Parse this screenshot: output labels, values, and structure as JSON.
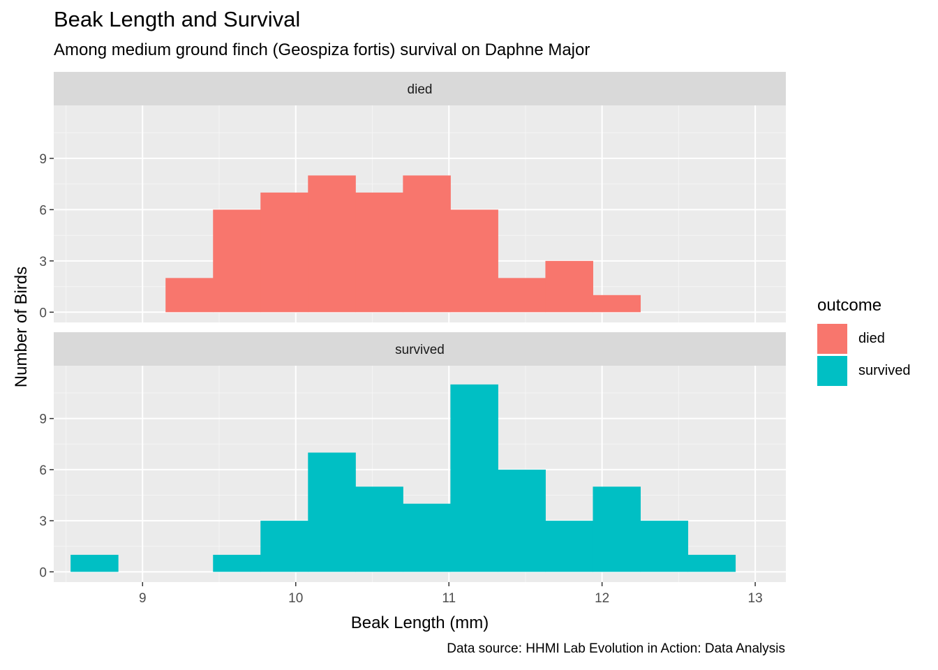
{
  "chart_data": {
    "type": "histogram",
    "title": "Beak Length and Survival",
    "subtitle": "Among medium ground finch (Geospiza fortis) survival on Daphne Major",
    "caption": "Data source: HHMI Lab Evolution in Action: Data Analysis",
    "xlabel": "Beak Length (mm)",
    "ylabel": "Number of Birds",
    "xlim": [
      8.42,
      13.2
    ],
    "ylim": [
      -0.6,
      12.1
    ],
    "x_ticks": [
      9,
      10,
      11,
      12,
      13
    ],
    "y_ticks": [
      0,
      3,
      6,
      9
    ],
    "bin_width": 0.31,
    "legend": {
      "title": "outcome",
      "position": "right",
      "items": [
        {
          "label": "died",
          "color": "#F8766D"
        },
        {
          "label": "survived",
          "color": "#00BFC4"
        }
      ]
    },
    "facets": [
      {
        "label": "died",
        "color": "#F8766D",
        "bins": [
          {
            "x_start": 9.15,
            "x_end": 9.46,
            "count": 2
          },
          {
            "x_start": 9.46,
            "x_end": 9.77,
            "count": 6
          },
          {
            "x_start": 9.77,
            "x_end": 10.08,
            "count": 7
          },
          {
            "x_start": 10.08,
            "x_end": 10.39,
            "count": 8
          },
          {
            "x_start": 10.39,
            "x_end": 10.7,
            "count": 7
          },
          {
            "x_start": 10.7,
            "x_end": 11.01,
            "count": 8
          },
          {
            "x_start": 11.01,
            "x_end": 11.32,
            "count": 6
          },
          {
            "x_start": 11.32,
            "x_end": 11.63,
            "count": 2
          },
          {
            "x_start": 11.63,
            "x_end": 11.94,
            "count": 3
          },
          {
            "x_start": 11.94,
            "x_end": 12.25,
            "count": 1
          }
        ]
      },
      {
        "label": "survived",
        "color": "#00BFC4",
        "bins": [
          {
            "x_start": 8.53,
            "x_end": 8.84,
            "count": 1
          },
          {
            "x_start": 9.46,
            "x_end": 9.77,
            "count": 1
          },
          {
            "x_start": 9.77,
            "x_end": 10.08,
            "count": 3
          },
          {
            "x_start": 10.08,
            "x_end": 10.39,
            "count": 7
          },
          {
            "x_start": 10.39,
            "x_end": 10.7,
            "count": 5
          },
          {
            "x_start": 10.7,
            "x_end": 11.01,
            "count": 4
          },
          {
            "x_start": 11.01,
            "x_end": 11.32,
            "count": 11
          },
          {
            "x_start": 11.32,
            "x_end": 11.63,
            "count": 6
          },
          {
            "x_start": 11.63,
            "x_end": 11.94,
            "count": 3
          },
          {
            "x_start": 11.94,
            "x_end": 12.25,
            "count": 5
          },
          {
            "x_start": 12.25,
            "x_end": 12.56,
            "count": 3
          },
          {
            "x_start": 12.56,
            "x_end": 12.87,
            "count": 1
          }
        ]
      }
    ]
  },
  "colors": {
    "panel_background": "#EBEBEB",
    "strip_background": "#D9D9D9",
    "grid_major": "#FFFFFF",
    "grid_minor": "#F5F5F5",
    "axis_text": "#4D4D4D",
    "tick": "#333333"
  }
}
